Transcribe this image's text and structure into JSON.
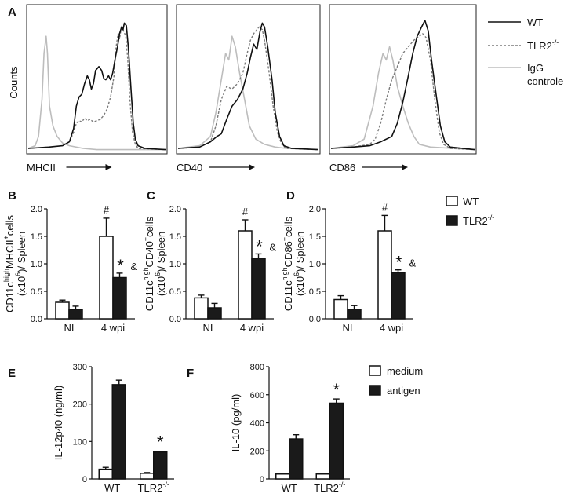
{
  "figure": {
    "panel_labels": {
      "A": "A",
      "B": "B",
      "C": "C",
      "D": "D",
      "E": "E",
      "F": "F"
    },
    "ylabel_counts": "Counts",
    "colors": {
      "wt": "#111111",
      "ko": "#7a7a7a",
      "igg": "#bdbdbd",
      "bar_dark": "#1a1a1a",
      "bar_light": "#ffffff"
    }
  },
  "chart_data": [
    {
      "id": "A1",
      "type": "line",
      "xlabel": "MHCII",
      "series": [
        {
          "name": "WT",
          "points": [
            [
              0,
              3
            ],
            [
              0.3,
              4
            ],
            [
              0.5,
              5
            ],
            [
              0.6,
              8
            ],
            [
              0.66,
              18
            ],
            [
              0.7,
              35
            ],
            [
              0.74,
              42
            ],
            [
              0.78,
              44
            ],
            [
              0.82,
              52
            ],
            [
              0.86,
              58
            ],
            [
              0.89,
              55
            ],
            [
              0.92,
              48
            ],
            [
              0.95,
              52
            ],
            [
              0.98,
              62
            ],
            [
              1.03,
              65
            ],
            [
              1.07,
              62
            ],
            [
              1.1,
              56
            ],
            [
              1.13,
              55
            ],
            [
              1.17,
              58
            ],
            [
              1.2,
              55
            ],
            [
              1.23,
              60
            ],
            [
              1.27,
              72
            ],
            [
              1.3,
              80
            ],
            [
              1.33,
              90
            ],
            [
              1.36,
              95
            ],
            [
              1.38,
              93
            ],
            [
              1.4,
              98
            ],
            [
              1.43,
              96
            ],
            [
              1.46,
              78
            ],
            [
              1.5,
              45
            ],
            [
              1.53,
              22
            ],
            [
              1.56,
              10
            ],
            [
              1.6,
              5
            ],
            [
              1.7,
              3
            ],
            [
              2.0,
              2
            ]
          ]
        },
        {
          "name": "TLR2-/-",
          "points": [
            [
              0,
              3
            ],
            [
              0.3,
              4
            ],
            [
              0.5,
              5
            ],
            [
              0.6,
              8
            ],
            [
              0.66,
              15
            ],
            [
              0.7,
              22
            ],
            [
              0.74,
              24
            ],
            [
              0.78,
              23
            ],
            [
              0.82,
              26
            ],
            [
              0.86,
              24
            ],
            [
              0.9,
              25
            ],
            [
              0.95,
              23
            ],
            [
              1.0,
              24
            ],
            [
              1.05,
              25
            ],
            [
              1.1,
              28
            ],
            [
              1.15,
              33
            ],
            [
              1.2,
              42
            ],
            [
              1.25,
              58
            ],
            [
              1.28,
              80
            ],
            [
              1.31,
              90
            ],
            [
              1.33,
              86
            ],
            [
              1.36,
              96
            ],
            [
              1.39,
              92
            ],
            [
              1.42,
              88
            ],
            [
              1.45,
              70
            ],
            [
              1.48,
              40
            ],
            [
              1.52,
              15
            ],
            [
              1.56,
              6
            ],
            [
              1.6,
              3
            ],
            [
              2.0,
              2
            ]
          ]
        },
        {
          "name": "IgG controle",
          "points": [
            [
              0,
              3
            ],
            [
              0.1,
              5
            ],
            [
              0.15,
              12
            ],
            [
              0.2,
              40
            ],
            [
              0.23,
              75
            ],
            [
              0.26,
              88
            ],
            [
              0.28,
              75
            ],
            [
              0.31,
              35
            ],
            [
              0.36,
              20
            ],
            [
              0.42,
              12
            ],
            [
              0.5,
              7
            ],
            [
              0.6,
              5
            ],
            [
              0.8,
              3
            ],
            [
              1.0,
              2
            ],
            [
              2.0,
              2
            ]
          ]
        }
      ]
    },
    {
      "id": "A2",
      "type": "line",
      "xlabel": "CD40",
      "series": [
        {
          "name": "WT",
          "points": [
            [
              0,
              3
            ],
            [
              0.2,
              4
            ],
            [
              0.3,
              8
            ],
            [
              0.36,
              12
            ],
            [
              0.4,
              14
            ],
            [
              0.45,
              25
            ],
            [
              0.5,
              35
            ],
            [
              0.55,
              40
            ],
            [
              0.6,
              48
            ],
            [
              0.64,
              60
            ],
            [
              0.67,
              72
            ],
            [
              0.7,
              82
            ],
            [
              0.73,
              78
            ],
            [
              0.76,
              92
            ],
            [
              0.78,
              98
            ],
            [
              0.8,
              95
            ],
            [
              0.83,
              80
            ],
            [
              0.87,
              55
            ],
            [
              0.9,
              30
            ],
            [
              0.94,
              12
            ],
            [
              0.98,
              5
            ],
            [
              1.05,
              3
            ],
            [
              1.3,
              2
            ]
          ]
        },
        {
          "name": "TLR2-/-",
          "points": [
            [
              0,
              3
            ],
            [
              0.2,
              4
            ],
            [
              0.3,
              8
            ],
            [
              0.35,
              20
            ],
            [
              0.4,
              40
            ],
            [
              0.45,
              50
            ],
            [
              0.5,
              48
            ],
            [
              0.55,
              52
            ],
            [
              0.6,
              60
            ],
            [
              0.64,
              75
            ],
            [
              0.67,
              85
            ],
            [
              0.7,
              90
            ],
            [
              0.72,
              92
            ],
            [
              0.75,
              95
            ],
            [
              0.78,
              93
            ],
            [
              0.8,
              85
            ],
            [
              0.84,
              62
            ],
            [
              0.88,
              35
            ],
            [
              0.92,
              15
            ],
            [
              0.96,
              6
            ],
            [
              1.0,
              3
            ],
            [
              1.3,
              2
            ]
          ]
        },
        {
          "name": "IgG controle",
          "points": [
            [
              0,
              3
            ],
            [
              0.2,
              5
            ],
            [
              0.3,
              12
            ],
            [
              0.35,
              30
            ],
            [
              0.4,
              55
            ],
            [
              0.44,
              75
            ],
            [
              0.47,
              70
            ],
            [
              0.5,
              88
            ],
            [
              0.53,
              80
            ],
            [
              0.57,
              60
            ],
            [
              0.62,
              38
            ],
            [
              0.66,
              20
            ],
            [
              0.72,
              10
            ],
            [
              0.8,
              6
            ],
            [
              0.9,
              4
            ],
            [
              1.0,
              3
            ],
            [
              1.3,
              2
            ]
          ]
        }
      ]
    },
    {
      "id": "A3",
      "type": "line",
      "xlabel": "CD86",
      "series": [
        {
          "name": "WT",
          "points": [
            [
              0,
              3
            ],
            [
              0.2,
              4
            ],
            [
              0.35,
              5
            ],
            [
              0.45,
              8
            ],
            [
              0.55,
              12
            ],
            [
              0.6,
              22
            ],
            [
              0.65,
              38
            ],
            [
              0.7,
              58
            ],
            [
              0.74,
              75
            ],
            [
              0.78,
              88
            ],
            [
              0.82,
              95
            ],
            [
              0.85,
              100
            ],
            [
              0.88,
              92
            ],
            [
              0.91,
              70
            ],
            [
              0.95,
              45
            ],
            [
              0.99,
              20
            ],
            [
              1.03,
              8
            ],
            [
              1.08,
              4
            ],
            [
              1.3,
              2
            ]
          ]
        },
        {
          "name": "TLR2-/-",
          "points": [
            [
              0,
              3
            ],
            [
              0.2,
              4
            ],
            [
              0.35,
              6
            ],
            [
              0.4,
              10
            ],
            [
              0.45,
              22
            ],
            [
              0.5,
              40
            ],
            [
              0.55,
              55
            ],
            [
              0.6,
              65
            ],
            [
              0.65,
              75
            ],
            [
              0.7,
              80
            ],
            [
              0.75,
              85
            ],
            [
              0.8,
              88
            ],
            [
              0.83,
              90
            ],
            [
              0.86,
              87
            ],
            [
              0.9,
              70
            ],
            [
              0.94,
              40
            ],
            [
              0.98,
              15
            ],
            [
              1.02,
              6
            ],
            [
              1.08,
              3
            ],
            [
              1.3,
              2
            ]
          ]
        },
        {
          "name": "IgG controle",
          "points": [
            [
              0,
              3
            ],
            [
              0.2,
              5
            ],
            [
              0.3,
              10
            ],
            [
              0.38,
              35
            ],
            [
              0.43,
              60
            ],
            [
              0.47,
              75
            ],
            [
              0.5,
              70
            ],
            [
              0.53,
              80
            ],
            [
              0.56,
              70
            ],
            [
              0.6,
              50
            ],
            [
              0.65,
              35
            ],
            [
              0.7,
              22
            ],
            [
              0.75,
              12
            ],
            [
              0.8,
              6
            ],
            [
              0.9,
              4
            ],
            [
              1.3,
              2
            ]
          ]
        }
      ]
    },
    {
      "id": "B",
      "type": "bar",
      "ylabel_main": "CD11c",
      "ylabel_sup": "high",
      "ylabel_rest": "MHCII",
      "ylabel_sup2": "+",
      "ylabel_tail": "cells",
      "ylabel2": "(x10",
      "ylabel2_sup": "6",
      "ylabel2_tail": ")/ Spleen",
      "ylim": [
        0,
        2.0
      ],
      "yticks": [
        0.0,
        0.5,
        1.0,
        1.5,
        2.0
      ],
      "ytick_labels": [
        "0.0",
        "0.5",
        "1.0",
        "1.5",
        "2.0"
      ],
      "categories": [
        "NI",
        "4 wpi"
      ],
      "series": [
        {
          "name": "WT",
          "values": [
            0.3,
            1.5
          ],
          "errors": [
            0.04,
            0.33
          ]
        },
        {
          "name": "TLR2-/-",
          "values": [
            0.17,
            0.75
          ],
          "errors": [
            0.06,
            0.08
          ]
        }
      ],
      "annotations": [
        "#",
        "*",
        "&"
      ]
    },
    {
      "id": "C",
      "type": "bar",
      "ylabel_main": "CD11c",
      "ylabel_sup": "high",
      "ylabel_rest": "CD40",
      "ylabel_sup2": "+",
      "ylabel_tail": "cells",
      "ylabel2": "(x10",
      "ylabel2_sup": "6",
      "ylabel2_tail": ")/ Spleen",
      "ylim": [
        0,
        2.0
      ],
      "yticks": [
        0.0,
        0.5,
        1.0,
        1.5,
        2.0
      ],
      "ytick_labels": [
        "0.0",
        "0.5",
        "1.0",
        "1.5",
        "2.0"
      ],
      "categories": [
        "NI",
        "4 wpi"
      ],
      "series": [
        {
          "name": "WT",
          "values": [
            0.38,
            1.6
          ],
          "errors": [
            0.05,
            0.2
          ]
        },
        {
          "name": "TLR2-/-",
          "values": [
            0.2,
            1.1
          ],
          "errors": [
            0.08,
            0.08
          ]
        }
      ],
      "annotations": [
        "#",
        "*",
        "&"
      ]
    },
    {
      "id": "D",
      "type": "bar",
      "ylabel_main": "CD11c",
      "ylabel_sup": "high",
      "ylabel_rest": "CD86",
      "ylabel_sup2": "+",
      "ylabel_tail": "cells",
      "ylabel2": "(x10",
      "ylabel2_sup": "6",
      "ylabel2_tail": ")/ Spleen",
      "ylim": [
        0,
        2.0
      ],
      "yticks": [
        0.0,
        0.5,
        1.0,
        1.5,
        2.0
      ],
      "ytick_labels": [
        "0.0",
        "0.5",
        "1.0",
        "1.5",
        "2.0"
      ],
      "categories": [
        "NI",
        "4 wpi"
      ],
      "series": [
        {
          "name": "WT",
          "values": [
            0.35,
            1.6
          ],
          "errors": [
            0.07,
            0.28
          ]
        },
        {
          "name": "TLR2-/-",
          "values": [
            0.17,
            0.84
          ],
          "errors": [
            0.07,
            0.05
          ]
        }
      ],
      "annotations": [
        "#",
        "*",
        "&"
      ]
    },
    {
      "id": "E",
      "type": "bar",
      "ylabel": "IL-12p40 (ng/ml)",
      "ylim": [
        0,
        300
      ],
      "yticks": [
        0,
        100,
        200,
        300
      ],
      "ytick_labels": [
        "0",
        "100",
        "200",
        "300"
      ],
      "categories": [
        "WT",
        "TLR2"
      ],
      "category_sup": [
        "",
        "-/-"
      ],
      "series": [
        {
          "name": "medium",
          "values": [
            26,
            15
          ],
          "errors": [
            5,
            2
          ]
        },
        {
          "name": "antigen",
          "values": [
            252,
            72
          ],
          "errors": [
            12,
            2
          ]
        }
      ],
      "annotations": [
        "*"
      ]
    },
    {
      "id": "F",
      "type": "bar",
      "ylabel": "IL-10 (pg/ml)",
      "ylim": [
        0,
        800
      ],
      "yticks": [
        0,
        200,
        400,
        600,
        800
      ],
      "ytick_labels": [
        "0",
        "200",
        "400",
        "600",
        "800"
      ],
      "categories": [
        "WT",
        "TLR2"
      ],
      "category_sup": [
        "",
        "-/-"
      ],
      "series": [
        {
          "name": "medium",
          "values": [
            35,
            35
          ],
          "errors": [
            5,
            5
          ]
        },
        {
          "name": "antigen",
          "values": [
            285,
            540
          ],
          "errors": [
            30,
            30
          ]
        }
      ],
      "annotations": [
        "*"
      ]
    }
  ],
  "legends": {
    "flow": [
      {
        "label": "WT",
        "sup": "",
        "style": "solid"
      },
      {
        "label": "TLR2",
        "sup": "-/-",
        "style": "dashed"
      },
      {
        "label": "IgG",
        "label2": "controle",
        "sup": "",
        "style": "gray"
      }
    ],
    "dc": [
      {
        "label": "WT",
        "sup": "",
        "fill": "white"
      },
      {
        "label": "TLR2",
        "sup": "-/-",
        "fill": "black"
      }
    ],
    "cyto": [
      {
        "label": "medium",
        "fill": "white"
      },
      {
        "label": "antigen",
        "fill": "black"
      }
    ]
  }
}
